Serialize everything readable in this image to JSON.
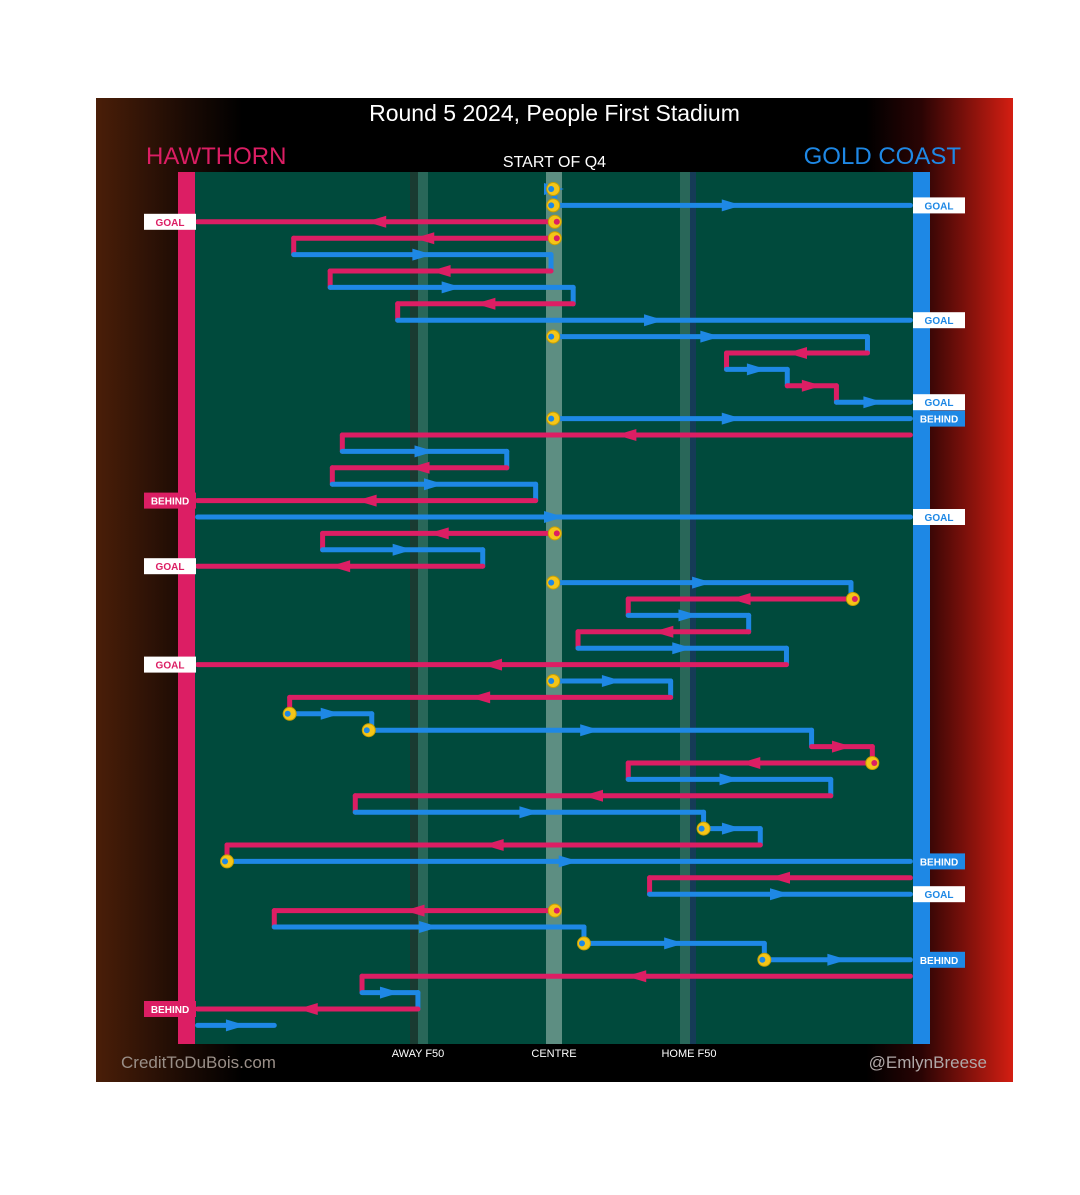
{
  "chart_data": {
    "type": "line",
    "title": "Round 5 2024, People First Stadium",
    "subtitle": "START OF Q4",
    "teams": {
      "left": {
        "name": "HAWTHORN",
        "color": "#dc1e64"
      },
      "right": {
        "name": "GOLD COAST",
        "color": "#1e88e5"
      }
    },
    "x_ticks": [
      {
        "label": "AWAY F50",
        "value": -50
      },
      {
        "label": "CENTRE",
        "value": 0
      },
      {
        "label": "HOME F50",
        "value": 50
      }
    ],
    "x_range": [
      -135,
      135
    ],
    "colors": {
      "pitch": "#004a3c",
      "stoppage": "#f5c518",
      "centre_band": "#6d9a8e"
    },
    "chains": [
      {
        "team": "gc",
        "start_stoppage": true,
        "segs": [
          [
            -0.3,
            0.3
          ]
        ]
      },
      {
        "team": "gc",
        "start_stoppage": true,
        "segs": [
          [
            -0.3,
            132
          ]
        ],
        "outcome": "GOAL"
      },
      {
        "team": "haw",
        "start_stoppage": true,
        "segs": [
          [
            0.3,
            -132
          ]
        ],
        "outcome": "GOAL"
      },
      {
        "team": "haw",
        "start_stoppage": true,
        "segs": [
          [
            0.3,
            -96.4
          ]
        ]
      },
      {
        "team": "gc",
        "segs": [
          [
            -96.4,
            -1.1
          ]
        ]
      },
      {
        "team": "haw",
        "segs": [
          [
            -1.1,
            -82.9
          ]
        ]
      },
      {
        "team": "gc",
        "segs": [
          [
            -82.9,
            7.1
          ]
        ]
      },
      {
        "team": "haw",
        "segs": [
          [
            7.1,
            -57.9
          ]
        ]
      },
      {
        "team": "gc",
        "segs": [
          [
            -57.9,
            132
          ]
        ],
        "outcome": "GOAL"
      },
      {
        "team": "gc",
        "start_stoppage": true,
        "segs": [
          [
            -0.3,
            116.1
          ]
        ]
      },
      {
        "team": "haw",
        "segs": [
          [
            116.1,
            63.9
          ]
        ]
      },
      {
        "team": "gc",
        "segs": [
          [
            63.9,
            86.4
          ]
        ]
      },
      {
        "team": "haw",
        "segs": [
          [
            86.4,
            104.6
          ]
        ]
      },
      {
        "team": "gc",
        "segs": [
          [
            104.6,
            132
          ]
        ],
        "outcome": "GOAL"
      },
      {
        "team": "gc",
        "start_stoppage": true,
        "segs": [
          [
            -0.3,
            132
          ]
        ],
        "outcome": "BEHIND"
      },
      {
        "team": "haw",
        "segs": [
          [
            132,
            -78.4
          ]
        ]
      },
      {
        "team": "gc",
        "segs": [
          [
            -78.4,
            -17.5
          ]
        ]
      },
      {
        "team": "haw",
        "segs": [
          [
            -17.5,
            -82.1
          ]
        ]
      },
      {
        "team": "gc",
        "segs": [
          [
            -82.1,
            -6.8
          ]
        ]
      },
      {
        "team": "haw",
        "segs": [
          [
            -6.8,
            -132
          ]
        ],
        "outcome": "BEHIND"
      },
      {
        "team": "gc",
        "segs": [
          [
            -132,
            132
          ]
        ],
        "outcome": "GOAL"
      },
      {
        "team": "haw",
        "start_stoppage": true,
        "segs": [
          [
            0.3,
            -85.7
          ]
        ]
      },
      {
        "team": "gc",
        "segs": [
          [
            -85.7,
            -26.4
          ]
        ]
      },
      {
        "team": "haw",
        "segs": [
          [
            -26.4,
            -132
          ]
        ],
        "outcome": "GOAL"
      },
      {
        "team": "gc",
        "start_stoppage": true,
        "segs": [
          [
            -0.3,
            110
          ]
        ]
      },
      {
        "team": "haw",
        "start_stoppage": true,
        "segs": [
          [
            110.7,
            27.5
          ]
        ]
      },
      {
        "team": "gc",
        "segs": [
          [
            27.5,
            72.1
          ]
        ]
      },
      {
        "team": "haw",
        "segs": [
          [
            72.1,
            8.9
          ]
        ]
      },
      {
        "team": "gc",
        "segs": [
          [
            8.9,
            86.1
          ]
        ]
      },
      {
        "team": "haw",
        "segs": [
          [
            86.1,
            -132
          ]
        ],
        "outcome": "GOAL"
      },
      {
        "team": "gc",
        "start_stoppage": true,
        "segs": [
          [
            -0.3,
            43.2
          ]
        ]
      },
      {
        "team": "haw",
        "segs": [
          [
            43.2,
            -97.9
          ]
        ]
      },
      {
        "team": "gc",
        "start_stoppage": true,
        "segs": [
          [
            -97.9,
            -67.5
          ]
        ]
      },
      {
        "team": "gc",
        "start_stoppage": true,
        "segs": [
          [
            -68.6,
            95.4
          ]
        ]
      },
      {
        "team": "haw",
        "segs": [
          [
            95.4,
            117.9
          ]
        ]
      },
      {
        "team": "haw",
        "start_stoppage": true,
        "segs": [
          [
            117.9,
            27.5
          ]
        ]
      },
      {
        "team": "gc",
        "segs": [
          [
            27.5,
            102.5
          ]
        ]
      },
      {
        "team": "haw",
        "segs": [
          [
            102.5,
            -73.6
          ]
        ]
      },
      {
        "team": "gc",
        "segs": [
          [
            -73.6,
            55.4
          ]
        ]
      },
      {
        "team": "gc",
        "start_stoppage": true,
        "segs": [
          [
            55.4,
            76.4
          ]
        ]
      },
      {
        "team": "haw",
        "segs": [
          [
            76.4,
            -121.1
          ]
        ]
      },
      {
        "team": "gc",
        "start_stoppage": true,
        "segs": [
          [
            -121.1,
            132
          ]
        ],
        "outcome": "BEHIND"
      },
      {
        "team": "haw",
        "segs": [
          [
            132,
            35.4
          ]
        ]
      },
      {
        "team": "gc",
        "segs": [
          [
            35.4,
            132
          ]
        ],
        "outcome": "GOAL"
      },
      {
        "team": "haw",
        "start_stoppage": true,
        "segs": [
          [
            0.3,
            -103.6
          ]
        ]
      },
      {
        "team": "gc",
        "segs": [
          [
            -103.6,
            11.1
          ]
        ]
      },
      {
        "team": "gc",
        "start_stoppage": true,
        "segs": [
          [
            11.1,
            77.9
          ]
        ]
      },
      {
        "team": "gc",
        "start_stoppage": true,
        "segs": [
          [
            77.9,
            132
          ]
        ],
        "outcome": "BEHIND"
      },
      {
        "team": "haw",
        "segs": [
          [
            132,
            -71.1
          ]
        ]
      },
      {
        "team": "gc",
        "segs": [
          [
            -71.1,
            -50.4
          ]
        ]
      },
      {
        "team": "haw",
        "segs": [
          [
            -50.4,
            -132
          ]
        ],
        "outcome": "BEHIND"
      },
      {
        "team": "gc",
        "segs": [
          [
            -132,
            -103.6
          ]
        ]
      }
    ]
  },
  "credits": {
    "left": "CreditToDuBois.com",
    "right": "@EmlynBreese"
  }
}
